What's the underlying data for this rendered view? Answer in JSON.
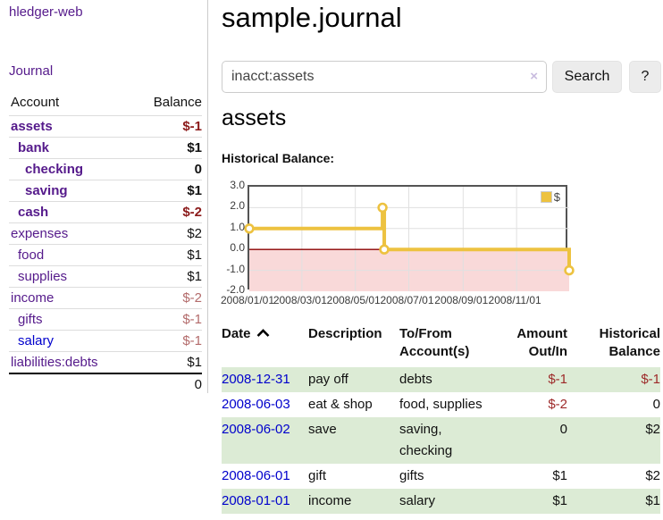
{
  "app": {
    "title": "hledger-web"
  },
  "sidebar": {
    "journal_label": "Journal",
    "accounts": {
      "header_account": "Account",
      "header_balance": "Balance",
      "rows": [
        {
          "name": "assets",
          "balance": "$-1",
          "depth": 0,
          "bold": true,
          "neg": "strong",
          "link_color": "purple"
        },
        {
          "name": "bank",
          "balance": "$1",
          "depth": 1,
          "bold": true,
          "neg": "none",
          "link_color": "purple"
        },
        {
          "name": "checking",
          "balance": "0",
          "depth": 2,
          "bold": true,
          "neg": "none",
          "link_color": "purple"
        },
        {
          "name": "saving",
          "balance": "$1",
          "depth": 2,
          "bold": true,
          "neg": "none",
          "link_color": "purple"
        },
        {
          "name": "cash",
          "balance": "$-2",
          "depth": 1,
          "bold": true,
          "neg": "strong",
          "link_color": "purple"
        },
        {
          "name": "expenses",
          "balance": "$2",
          "depth": 0,
          "bold": false,
          "neg": "none",
          "link_color": "purple"
        },
        {
          "name": "food",
          "balance": "$1",
          "depth": 1,
          "bold": false,
          "neg": "none",
          "link_color": "purple"
        },
        {
          "name": "supplies",
          "balance": "$1",
          "depth": 1,
          "bold": false,
          "neg": "none",
          "link_color": "purple"
        },
        {
          "name": "income",
          "balance": "$-2",
          "depth": 0,
          "bold": false,
          "neg": "muted",
          "link_color": "purple"
        },
        {
          "name": "gifts",
          "balance": "$-1",
          "depth": 1,
          "bold": false,
          "neg": "muted",
          "link_color": "purple"
        },
        {
          "name": "salary",
          "balance": "$-1",
          "depth": 1,
          "bold": false,
          "neg": "muted",
          "link_color": "blue"
        },
        {
          "name": "liabilities:debts",
          "balance": "$1",
          "depth": 0,
          "bold": false,
          "neg": "none",
          "link_color": "purple"
        }
      ],
      "total": "0"
    }
  },
  "main": {
    "title": "sample.journal",
    "search": {
      "value": "inacct:assets",
      "clear_icon": "×",
      "button_label": "Search",
      "help_label": "?"
    },
    "account_heading": "assets",
    "chart_heading": "Historical Balance:"
  },
  "chart_data": {
    "type": "line",
    "title": "Historical Balance:",
    "step": true,
    "x_range": [
      "2008-01-01",
      "2008-12-31"
    ],
    "y_range": [
      -2,
      3
    ],
    "y_ticks": [
      "3.0",
      "2.0",
      "1.0",
      "0.0",
      "-1.0",
      "-2.0"
    ],
    "x_ticks": [
      {
        "label": "2008/01/01",
        "date": "2008-01-01"
      },
      {
        "label": "2008/03/01",
        "date": "2008-03-01"
      },
      {
        "label": "2008/05/01",
        "date": "2008-05-01"
      },
      {
        "label": "2008/07/01",
        "date": "2008-07-01"
      },
      {
        "label": "2008/09/01",
        "date": "2008-09-01"
      },
      {
        "label": "2008/11/01",
        "date": "2008-11-01"
      }
    ],
    "series": [
      {
        "name": "$",
        "color": "#edc240",
        "points": [
          {
            "date": "2008-01-01",
            "value": 1
          },
          {
            "date": "2008-06-01",
            "value": 2
          },
          {
            "date": "2008-06-03",
            "value": 0
          },
          {
            "date": "2008-12-31",
            "value": -1
          }
        ]
      }
    ],
    "legend": {
      "label": "$",
      "position": "top-right"
    },
    "grid": true,
    "grid_color": "#e0e0e0",
    "zero_line_color": "#8b0000",
    "negative_region_fill": "#f9d9d9"
  },
  "register": {
    "headers": [
      {
        "lines": [
          "Date"
        ],
        "sorted": true,
        "align": "left"
      },
      {
        "lines": [
          "Description"
        ],
        "align": "left"
      },
      {
        "lines": [
          "To/From",
          "Account(s)"
        ],
        "align": "left"
      },
      {
        "lines": [
          "Amount",
          "Out/In"
        ],
        "align": "right"
      },
      {
        "lines": [
          "Historical",
          "Balance"
        ],
        "align": "right"
      }
    ],
    "rows": [
      {
        "date": "2008-12-31",
        "description": "pay off",
        "accounts": "debts",
        "amount": "$-1",
        "balance": "$-1"
      },
      {
        "date": "2008-06-03",
        "description": "eat & shop",
        "accounts": "food, supplies",
        "amount": "$-2",
        "balance": "0"
      },
      {
        "date": "2008-06-02",
        "description": "save",
        "accounts": "saving, checking",
        "amount": "0",
        "balance": "$2"
      },
      {
        "date": "2008-06-01",
        "description": "gift",
        "accounts": "gifts",
        "amount": "$1",
        "balance": "$2"
      },
      {
        "date": "2008-01-01",
        "description": "income",
        "accounts": "salary",
        "amount": "$1",
        "balance": "$1"
      }
    ]
  }
}
